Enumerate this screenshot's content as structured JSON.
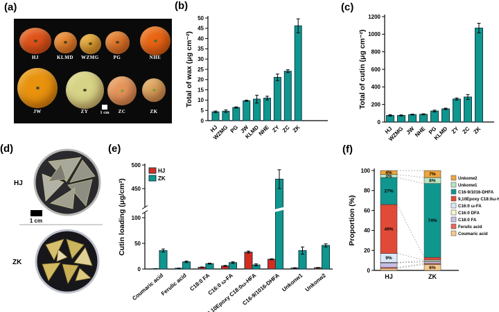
{
  "panels": {
    "a": {
      "label": "(a)",
      "row1": [
        {
          "label": "HJ",
          "color": "#e0521a"
        },
        {
          "label": "KLMD",
          "color": "#e8822c"
        },
        {
          "label": "WZMG",
          "color": "#e2a332"
        },
        {
          "label": "PG",
          "color": "#e2762a"
        },
        {
          "label": "NHE",
          "color": "#ea6414"
        }
      ],
      "row2": [
        {
          "label": "JW",
          "color": "#e8920e"
        },
        {
          "label": "ZY",
          "color": "#d6d286"
        },
        {
          "label": "ZC",
          "color": "#e6945c"
        },
        {
          "label": "ZK",
          "color": "#dca05c"
        }
      ],
      "scale_label": "1 cm"
    },
    "b": {
      "label": "(b)"
    },
    "c": {
      "label": "(c)"
    },
    "d": {
      "label": "(d)",
      "dishes": [
        {
          "label": "HJ",
          "fragment_color": "#a8a89a"
        },
        {
          "label": "ZK",
          "fragment_color": "#d6c06e"
        }
      ],
      "scale_label": "1 cm"
    },
    "e": {
      "label": "(e)"
    },
    "f": {
      "label": "(f)"
    }
  },
  "chart_data": [
    {
      "id": "b",
      "type": "bar",
      "ylabel": "Total of wax (μg cm⁻²)",
      "categories": [
        "HJ",
        "WZMG",
        "PG",
        "JW",
        "KLMD",
        "NHE",
        "ZY",
        "ZC",
        "ZK"
      ],
      "values": [
        4.3,
        4.6,
        6.4,
        9.7,
        10.5,
        11.0,
        21.1,
        24.1,
        46.2
      ],
      "errors": [
        0.4,
        0.6,
        0.3,
        0.3,
        1.9,
        0.9,
        1.6,
        0.7,
        3.4
      ],
      "ylim": [
        0,
        50
      ],
      "ytick_step": 5,
      "bar_color": "#0f968e",
      "grid": false
    },
    {
      "id": "c",
      "type": "bar",
      "ylabel": "Total of cutin (μg cm⁻²)",
      "categories": [
        "HJ",
        "WZMG",
        "JW",
        "NHE",
        "PG",
        "KLMD",
        "ZY",
        "ZC",
        "ZK"
      ],
      "values": [
        75,
        75,
        85,
        88,
        125,
        150,
        262,
        285,
        1070
      ],
      "errors": [
        8,
        6,
        5,
        6,
        10,
        8,
        12,
        28,
        55
      ],
      "ylim": [
        0,
        1200
      ],
      "ytick_step": 200,
      "bar_color": "#0f968e",
      "grid": false
    },
    {
      "id": "e",
      "type": "bar",
      "subtype": "grouped-broken-y-axis",
      "ylabel": "Cutin loading (μg/cm²)",
      "categories": [
        "Coumaric acid",
        "Ferulic acid",
        "C18:0 FA",
        "C16:0 ω-FA",
        "9,10Epoxy C18:0ω-HFA",
        "C16-9/1016-DHFA",
        "Unkonw1",
        "Unkonw2"
      ],
      "series": [
        {
          "name": "HJ",
          "color": "#d62b1f",
          "values": [
            0.6,
            1.5,
            3.5,
            6,
            33,
            19,
            2,
            2.5
          ],
          "errors": [
            0.2,
            0.3,
            0.5,
            1,
            2,
            1,
            0.5,
            0.5
          ]
        },
        {
          "name": "ZK",
          "color": "#0f968e",
          "values": [
            36,
            14,
            10.5,
            12.5,
            8,
            470,
            36,
            46
          ],
          "errors": [
            3,
            1.5,
            1,
            1.5,
            2,
            20,
            7,
            3
          ]
        }
      ],
      "yticks_lower": [
        0,
        50,
        100
      ],
      "yticks_upper": [
        450,
        500
      ],
      "axis_break": [
        110,
        445
      ],
      "legend_position": "top-left"
    },
    {
      "id": "f",
      "type": "bar",
      "subtype": "stacked-percent",
      "ylabel": "Proportion (%)",
      "categories": [
        "HJ",
        "ZK"
      ],
      "ylim": [
        0,
        100
      ],
      "ytick_step": 20,
      "series": [
        {
          "name": "Coumaric acid",
          "color": "#f5c98e",
          "values": [
            2,
            6
          ],
          "labels": [
            "",
            "6%"
          ]
        },
        {
          "name": "Ferulic acid",
          "color": "#e3685c",
          "values": [
            1,
            1
          ],
          "labels": [
            "",
            ""
          ]
        },
        {
          "name": "C18:0 FA",
          "color": "#c7bfe6",
          "values": [
            4.5,
            1.5
          ],
          "labels": [
            "",
            ""
          ]
        },
        {
          "name": "C16:0 DFA",
          "color": "#f6f6cc",
          "values": [
            0.5,
            1
          ],
          "labels": [
            "",
            ""
          ]
        },
        {
          "name": "C16:0 ω-FA",
          "color": "#d9e9f7",
          "values": [
            9,
            1
          ],
          "labels": [
            "9%",
            ""
          ]
        },
        {
          "name": "9,10Epoxy C18:0ω-HFA",
          "color": "#e04b38",
          "values": [
            49,
            2.5
          ],
          "labels": [
            "49%",
            ""
          ]
        },
        {
          "name": "C16-9/1016-DHFA",
          "color": "#0f968e",
          "values": [
            27,
            74
          ],
          "labels": [
            "27%",
            "74%"
          ]
        },
        {
          "name": "Unkonw1",
          "color": "#b9e6c3",
          "values": [
            3,
            6
          ],
          "labels": [
            "3%",
            "6%"
          ]
        },
        {
          "name": "Unkonw2",
          "color": "#eda63e",
          "values": [
            4,
            7
          ],
          "labels": [
            "4%",
            "7%"
          ]
        }
      ],
      "legend_position": "right"
    }
  ]
}
